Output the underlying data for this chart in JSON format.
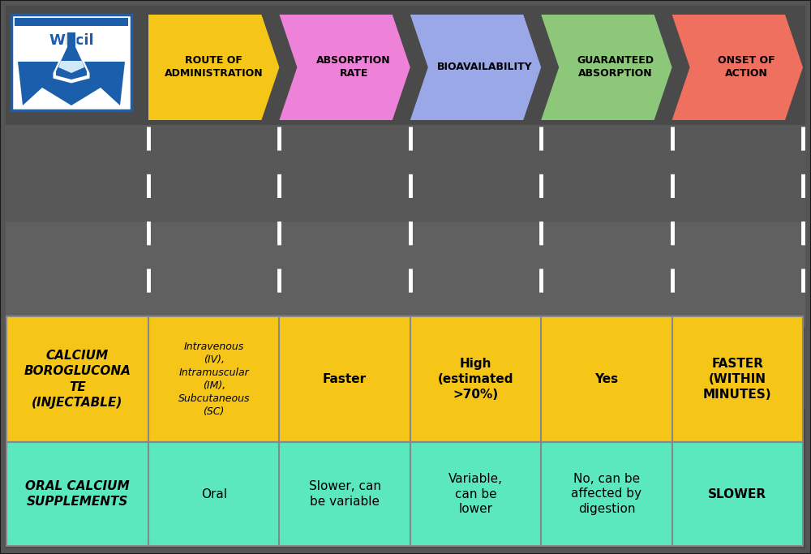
{
  "header_arrows": [
    {
      "label": "ROUTE OF\nADMINISTRATION",
      "color": "#F5C518",
      "text_color": "#000000"
    },
    {
      "label": "ABSORPTION\nRATE",
      "color": "#EE82D8",
      "text_color": "#000000"
    },
    {
      "label": "BIOAVAILABILITY",
      "color": "#9BA8E8",
      "text_color": "#000000"
    },
    {
      "label": "GUARANTEED\nABSORPTION",
      "color": "#8DC87A",
      "text_color": "#000000"
    },
    {
      "label": "ONSET OF\nACTION",
      "color": "#F07060",
      "text_color": "#000000"
    }
  ],
  "row1_color": "#F5C518",
  "row2_color": "#5CE8BE",
  "row1_label": "CALCIUM\nBOROGLUCONA\nTE\n(INJECTABLE)",
  "row2_label": "ORAL CALCIUM\nSUPPLEMENTS",
  "row1_cells": [
    "Intravenous\n(IV),\nIntramuscular\n(IM),\nSubcutaneous\n(SC)",
    "Faster",
    "High\n(estimated\n>70%)",
    "Yes",
    "FASTER\n(WITHIN\nMINUTES)"
  ],
  "row2_cells": [
    "Oral",
    "Slower, can\nbe variable",
    "Variable,\ncan be\nlower",
    "No, can be\naffected by\ndigestion",
    "SLOWER"
  ],
  "outer_bg": "#1a1a1a",
  "photo_bg_top": "#4a4a4a",
  "photo_bg_mid": "#666666",
  "photo_bg_bot": "#3a3a3a",
  "border_color": "#555555",
  "cell_border": "#888888",
  "dashed_color": "#FFFFFF",
  "logo_border": "#1B5EAB",
  "logo_text_color": "#1B5EAB",
  "logo_flask_color": "#1B5EAB",
  "notch": 22
}
